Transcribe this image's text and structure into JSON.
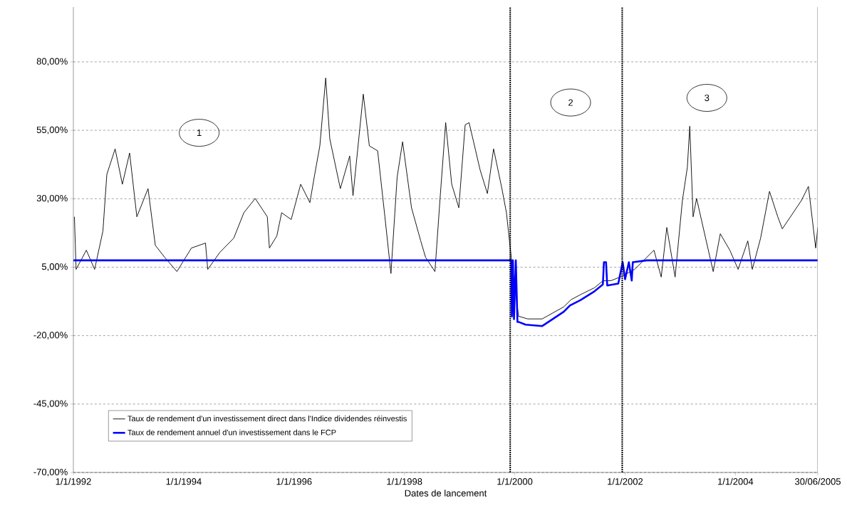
{
  "chart_data": {
    "type": "line",
    "xlabel": "Dates de lancement",
    "xlim": [
      "1992-01-01",
      "2005-06-30"
    ],
    "xticks": [
      {
        "value": "1992-01-01",
        "label": "1/1/1992"
      },
      {
        "value": "1994-01-01",
        "label": "1/1/1994"
      },
      {
        "value": "1996-01-01",
        "label": "1/1/1996"
      },
      {
        "value": "1998-01-01",
        "label": "1/1/1998"
      },
      {
        "value": "2000-01-01",
        "label": "1/1/2000"
      },
      {
        "value": "2002-01-01",
        "label": "1/1/2002"
      },
      {
        "value": "2004-01-01",
        "label": "1/1/2004"
      },
      {
        "value": "2005-06-30",
        "label": "30/06/2005"
      }
    ],
    "ylim": [
      -70,
      100
    ],
    "yticks": [
      {
        "value": -70,
        "label": "-70,00%"
      },
      {
        "value": -45,
        "label": "-45,00%"
      },
      {
        "value": -20,
        "label": "-20,00%"
      },
      {
        "value": 5,
        "label": "5,00%"
      },
      {
        "value": 30,
        "label": "30,00%"
      },
      {
        "value": 55,
        "label": "55,00%"
      },
      {
        "value": 80,
        "label": "80,00%"
      }
    ],
    "grid": "y",
    "legend": "bottom left",
    "series": [
      {
        "name": "Taux de rendement d'un investissement direct dans l'Indice dividendes réinvestis",
        "color": "#000000",
        "x": [
          "1992-01-08",
          "1992-01-19",
          "1992-03-27",
          "1992-05-21",
          "1992-07-15",
          "1992-08-10",
          "1992-10-04",
          "1992-11-21",
          "1993-01-08",
          "1993-02-25",
          "1993-05-10",
          "1993-06-27",
          "1993-08-28",
          "1993-11-17",
          "1994-02-21",
          "1994-05-25",
          "1994-06-09",
          "1994-08-28",
          "1994-11-28",
          "1995-02-03",
          "1995-04-19",
          "1995-07-08",
          "1995-07-22",
          "1995-09-09",
          "1995-10-11",
          "1995-12-13",
          "1996-02-14",
          "1996-04-15",
          "1996-05-17",
          "1996-06-20",
          "1996-07-29",
          "1996-08-25",
          "1996-11-03",
          "1997-01-04",
          "1997-01-26",
          "1997-04-04",
          "1997-05-14",
          "1997-07-08",
          "1997-08-25",
          "1997-10-04",
          "1997-11-14",
          "1997-12-20",
          "1998-02-17",
          "1998-04-19",
          "1998-05-21",
          "1998-07-22",
          "1998-08-25",
          "1998-10-01",
          "1998-11-10",
          "1998-12-27",
          "1999-02-07",
          "1999-03-05",
          "1999-05-17",
          "1999-07-04",
          "1999-08-14",
          "1999-10-08",
          "1999-11-07",
          "1999-12-09",
          "2000-01-26",
          "2000-03-27",
          "2000-07-01",
          "2000-11-21",
          "2001-01-08",
          "2001-03-13",
          "2001-06-13",
          "2001-08-07",
          "2001-10-01",
          "2001-12-09",
          "2002-03-05",
          "2002-07-11",
          "2002-08-28",
          "2002-10-04",
          "2002-11-28",
          "2003-01-15",
          "2003-02-17",
          "2003-03-05",
          "2003-03-27",
          "2003-04-19",
          "2003-08-07",
          "2003-09-23",
          "2003-11-25",
          "2004-01-19",
          "2004-03-23",
          "2004-04-22",
          "2004-06-16",
          "2004-08-14",
          "2004-10-08",
          "2004-11-07",
          "2005-03-13",
          "2005-04-29",
          "2005-06-16",
          "2005-06-30"
        ],
        "values": [
          23.4,
          4.2,
          11.2,
          4.2,
          18.2,
          38.9,
          48.2,
          35.3,
          46.7,
          23.4,
          33.7,
          13,
          8.6,
          3.4,
          12,
          13.8,
          4.2,
          10.4,
          15.6,
          24.9,
          30.1,
          23.4,
          12,
          16.4,
          24.9,
          22.4,
          35.3,
          28.6,
          38.9,
          49.3,
          74.1,
          51.9,
          33.7,
          45.6,
          31.1,
          68.2,
          49.3,
          47.5,
          23.4,
          2.7,
          37.9,
          50.8,
          26.7,
          14.6,
          8.6,
          3.4,
          30.1,
          57.8,
          35.3,
          26.7,
          57,
          57.8,
          40.5,
          31.9,
          48.2,
          33.7,
          24.9,
          8.6,
          -12.9,
          -13.9,
          -13.9,
          -9.5,
          -6.9,
          -5,
          -2.5,
          0,
          0.1,
          1.6,
          4.2,
          11.2,
          1.4,
          19.5,
          1.4,
          29.3,
          41.5,
          56.5,
          23.4,
          30.1,
          3.4,
          17.2,
          11.2,
          4.2,
          14.6,
          4.2,
          15.6,
          32.7,
          23.4,
          19,
          29.3,
          34.5,
          12,
          19.5
        ]
      },
      {
        "name": "Taux de rendement annuel d'un investissement dans le FCP",
        "color": "#0000ff",
        "x": [
          "1992-01-01",
          "1999-12-09",
          "1999-12-13",
          "1999-12-20",
          "1999-12-27",
          "2000-01-08",
          "2000-01-19",
          "2000-01-26",
          "2000-03-13",
          "2000-07-01",
          "2000-11-21",
          "2001-01-01",
          "2001-03-13",
          "2001-06-13",
          "2001-08-07",
          "2001-08-14",
          "2001-08-28",
          "2001-09-05",
          "2001-11-17",
          "2001-12-16",
          "2002-01-01",
          "2002-01-26",
          "2002-02-14",
          "2002-02-21",
          "2002-05-25",
          "2005-06-30"
        ],
        "values": [
          7.5,
          7.5,
          -13,
          7.5,
          -14,
          7.5,
          -15,
          -15,
          -16,
          -16.5,
          -11.3,
          -9,
          -7,
          -3.8,
          -1.3,
          6.8,
          6.8,
          -1.7,
          -1,
          6.8,
          0.6,
          6.8,
          0.1,
          6.8,
          7.5,
          7.5
        ]
      }
    ],
    "ref_lines": [
      {
        "axis": "x",
        "value": "1999-12-02",
        "line_style": "dotted",
        "color": "#000000"
      },
      {
        "axis": "x",
        "value": "2001-12-13",
        "line_style": "dotted",
        "color": "#000000"
      }
    ],
    "annotations": [
      "1",
      "2",
      "3"
    ]
  }
}
